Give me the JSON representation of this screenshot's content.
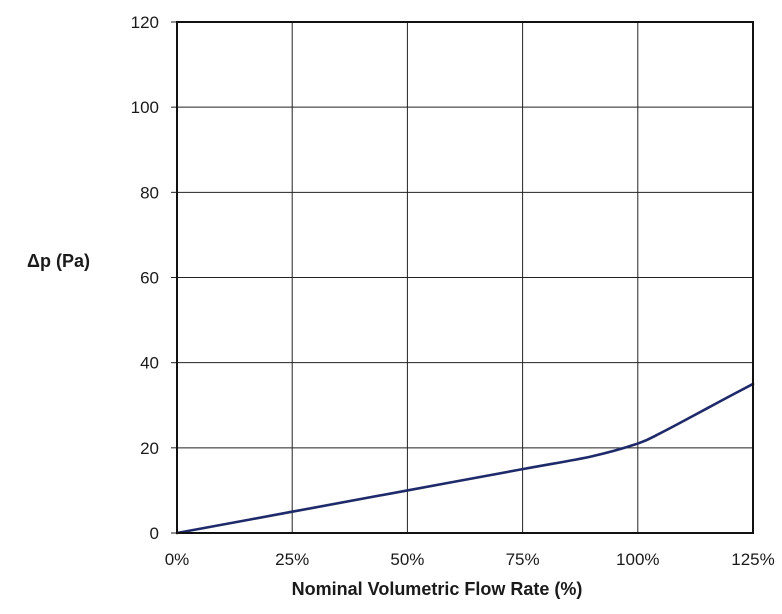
{
  "chart_data": {
    "type": "line",
    "xlabel": "Nominal Volumetric Flow Rate (%)",
    "ylabel": "Δp (Pa)",
    "xlim": [
      0,
      125
    ],
    "ylim": [
      0,
      120
    ],
    "x_ticks": [
      0,
      25,
      50,
      75,
      100,
      125
    ],
    "x_tick_labels": [
      "0%",
      "25%",
      "50%",
      "75%",
      "100%",
      "125%"
    ],
    "y_ticks": [
      0,
      20,
      40,
      60,
      80,
      100,
      120
    ],
    "y_tick_labels": [
      "0",
      "20",
      "40",
      "60",
      "80",
      "100",
      "120"
    ],
    "grid": true,
    "series": [
      {
        "color": "#1f2a6b",
        "x": [
          0,
          25,
          50,
          75,
          90,
          100,
          105,
          112,
          118,
          125
        ],
        "y": [
          0,
          5,
          10,
          15,
          18,
          21,
          23.5,
          27.5,
          31,
          35
        ]
      }
    ]
  }
}
